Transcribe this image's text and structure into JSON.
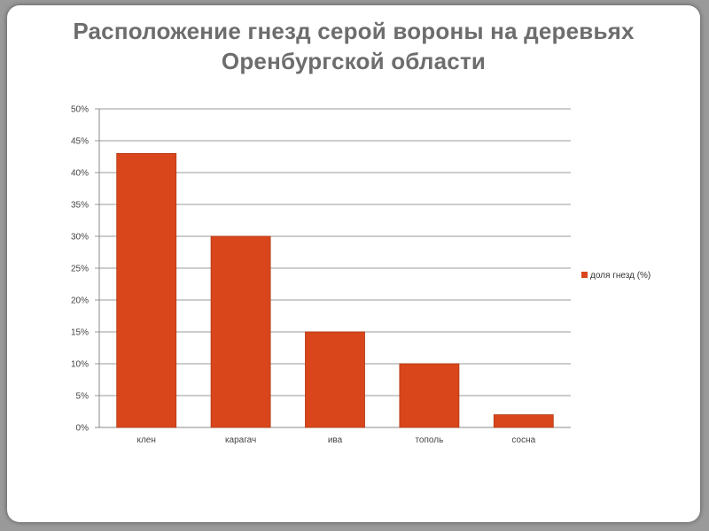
{
  "slide": {
    "title_line1": "Расположение гнезд серой вороны на деревьях",
    "title_line2": "Оренбургской области"
  },
  "chart_data": {
    "type": "bar",
    "title": "Расположение гнезд серой вороны на деревьях Оренбургской области",
    "categories": [
      "клен",
      "карагач",
      "ива",
      "тополь",
      "сосна"
    ],
    "series": [
      {
        "name": "доля гнезд (%)",
        "values": [
          43,
          30,
          15,
          10,
          2
        ],
        "color": "#d9461c"
      }
    ],
    "ylim": [
      0,
      50
    ],
    "y_ticks": [
      0,
      5,
      10,
      15,
      20,
      25,
      30,
      35,
      40,
      45,
      50
    ],
    "y_tick_labels": [
      "0%",
      "5%",
      "10%",
      "15%",
      "20%",
      "25%",
      "30%",
      "35%",
      "40%",
      "45%",
      "50%"
    ],
    "grid": true,
    "legend_position": "right"
  }
}
